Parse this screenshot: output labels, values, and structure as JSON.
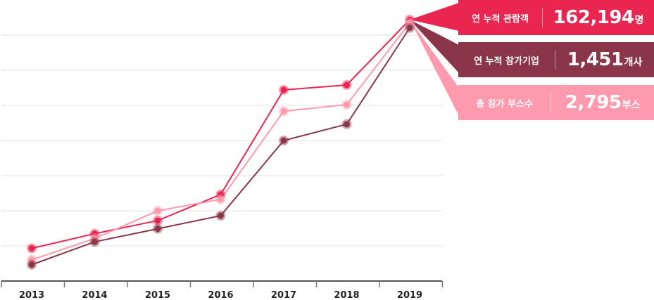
{
  "chart_data": {
    "type": "line",
    "categories": [
      "2013",
      "2014",
      "2015",
      "2016",
      "2017",
      "2018",
      "2019"
    ],
    "ylim": [
      0,
      8
    ],
    "grid": true,
    "series": [
      {
        "key": "visitors",
        "name": "연 누적 관람객",
        "color": "#e8264f",
        "values": [
          1.0,
          1.45,
          1.85,
          2.65,
          5.85,
          6.0,
          8.0
        ]
      },
      {
        "key": "booths",
        "name": "총 참가 부스수",
        "color": "#ff9aae",
        "values": [
          0.65,
          1.3,
          2.15,
          2.5,
          5.2,
          5.4,
          7.9
        ]
      },
      {
        "key": "companies",
        "name": "연 누적 참가기업",
        "color": "#8b3548",
        "values": [
          0.5,
          1.2,
          1.6,
          2.0,
          4.3,
          4.8,
          7.75
        ]
      }
    ]
  },
  "callouts": [
    {
      "label": "연 누적 관람객",
      "value": "162,194",
      "unit": "명",
      "color": "#e8264f"
    },
    {
      "label": "연 누적 참가기업",
      "value": "1,451",
      "unit": "개사",
      "color": "#8b3548"
    },
    {
      "label": "총 참가 부스수",
      "value": "2,795",
      "unit": "부스",
      "color": "#ff9aae"
    }
  ]
}
